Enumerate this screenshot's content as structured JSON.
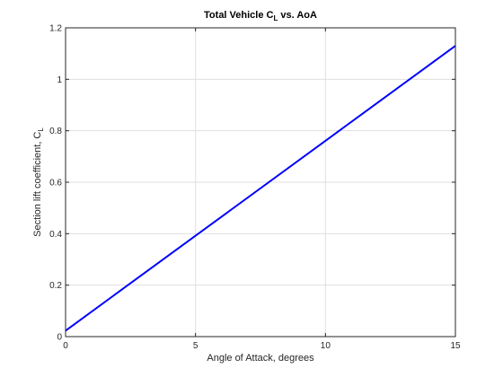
{
  "chart_data": {
    "type": "line",
    "title": {
      "main": "Total Vehicle C",
      "sub": "L",
      "tail": " vs. AoA"
    },
    "xlabel": "Angle of Attack, degrees",
    "ylabel": {
      "main": "Section lift coefficient, C",
      "sub": "L"
    },
    "xlim": [
      0,
      15
    ],
    "ylim": [
      0,
      1.2
    ],
    "xticks": [
      0,
      5,
      10,
      15
    ],
    "xtick_labels": [
      "0",
      "5",
      "10",
      "15"
    ],
    "yticks": [
      0,
      0.2,
      0.4,
      0.6,
      0.8,
      1,
      1.2
    ],
    "ytick_labels": [
      "0",
      "0.2",
      "0.4",
      "0.6",
      "0.8",
      "1",
      "1.2"
    ],
    "grid": true,
    "series": [
      {
        "color": "#0000ff",
        "x": [
          0,
          15
        ],
        "y": [
          0.023,
          1.13
        ]
      }
    ]
  }
}
